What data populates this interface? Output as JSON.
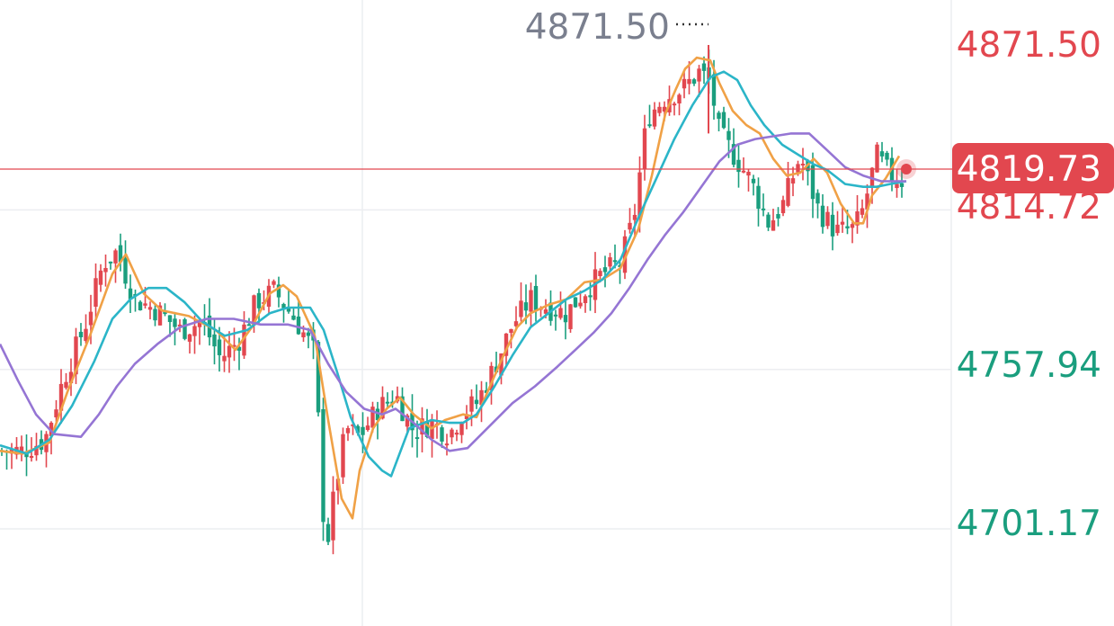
{
  "chart_data": {
    "type": "candlestick",
    "title": "",
    "y_axis": {
      "side": "right",
      "ticks": [
        {
          "label": "4871.50",
          "value": 4871.5,
          "color": "#e2474f"
        },
        {
          "label": "4814.72",
          "value": 4814.72,
          "color": "#e2474f"
        },
        {
          "label": "4757.94",
          "value": 4757.94,
          "color": "#1a9e7e"
        },
        {
          "label": "4701.17",
          "value": 4701.17,
          "color": "#1a9e7e"
        }
      ],
      "ylim": [
        4687,
        4880
      ]
    },
    "current_price": {
      "label": "4819.73",
      "value": 4819.73,
      "color": "#e2474f"
    },
    "peak_marker": {
      "label": "4871.50",
      "value": 4871.5,
      "color": "#7a7f8e"
    },
    "grid": true,
    "colors": {
      "up": "#e2474f",
      "down": "#1a9e7e",
      "grid": "#eceef1"
    },
    "ma_series": [
      {
        "color": "#f0a146",
        "points": [
          [
            0,
            4727
          ],
          [
            25,
            4726
          ],
          [
            55,
            4730
          ],
          [
            75,
            4748
          ],
          [
            100,
            4768
          ],
          [
            125,
            4790
          ],
          [
            140,
            4797
          ],
          [
            160,
            4783
          ],
          [
            180,
            4777
          ],
          [
            210,
            4775
          ],
          [
            240,
            4770
          ],
          [
            262,
            4763
          ],
          [
            280,
            4771
          ],
          [
            300,
            4783
          ],
          [
            315,
            4786
          ],
          [
            330,
            4782
          ],
          [
            350,
            4768
          ],
          [
            365,
            4738
          ],
          [
            380,
            4710
          ],
          [
            392,
            4703
          ],
          [
            400,
            4720
          ],
          [
            415,
            4735
          ],
          [
            430,
            4742
          ],
          [
            445,
            4746
          ],
          [
            460,
            4740
          ],
          [
            480,
            4735
          ],
          [
            495,
            4738
          ],
          [
            515,
            4740
          ],
          [
            530,
            4739
          ],
          [
            545,
            4750
          ],
          [
            560,
            4761
          ],
          [
            575,
            4771
          ],
          [
            590,
            4776
          ],
          [
            610,
            4779
          ],
          [
            630,
            4781
          ],
          [
            650,
            4787
          ],
          [
            670,
            4788
          ],
          [
            690,
            4792
          ],
          [
            710,
            4806
          ],
          [
            725,
            4825
          ],
          [
            740,
            4847
          ],
          [
            752,
            4856
          ],
          [
            762,
            4863
          ],
          [
            775,
            4867
          ],
          [
            790,
            4866
          ],
          [
            800,
            4858
          ],
          [
            815,
            4848
          ],
          [
            830,
            4843
          ],
          [
            845,
            4840
          ],
          [
            860,
            4831
          ],
          [
            875,
            4825
          ],
          [
            890,
            4826
          ],
          [
            905,
            4831
          ],
          [
            920,
            4826
          ],
          [
            935,
            4815
          ],
          [
            950,
            4808
          ],
          [
            960,
            4808
          ],
          [
            970,
            4818
          ],
          [
            985,
            4824
          ],
          [
            1000,
            4832
          ]
        ]
      },
      {
        "color": "#2bb5c8",
        "points": [
          [
            0,
            4729
          ],
          [
            30,
            4726
          ],
          [
            55,
            4731
          ],
          [
            80,
            4743
          ],
          [
            105,
            4759
          ],
          [
            125,
            4774
          ],
          [
            145,
            4781
          ],
          [
            165,
            4785
          ],
          [
            185,
            4785
          ],
          [
            205,
            4780
          ],
          [
            225,
            4773
          ],
          [
            250,
            4768
          ],
          [
            275,
            4770
          ],
          [
            300,
            4776
          ],
          [
            320,
            4778
          ],
          [
            345,
            4778
          ],
          [
            360,
            4770
          ],
          [
            375,
            4755
          ],
          [
            390,
            4739
          ],
          [
            410,
            4725
          ],
          [
            425,
            4720
          ],
          [
            435,
            4718
          ],
          [
            455,
            4735
          ],
          [
            480,
            4738
          ],
          [
            500,
            4737
          ],
          [
            515,
            4737
          ],
          [
            530,
            4740
          ],
          [
            550,
            4750
          ],
          [
            570,
            4761
          ],
          [
            590,
            4771
          ],
          [
            610,
            4776
          ],
          [
            630,
            4781
          ],
          [
            650,
            4784
          ],
          [
            670,
            4788
          ],
          [
            690,
            4795
          ],
          [
            710,
            4810
          ],
          [
            730,
            4824
          ],
          [
            750,
            4838
          ],
          [
            770,
            4850
          ],
          [
            790,
            4860
          ],
          [
            805,
            4862
          ],
          [
            820,
            4859
          ],
          [
            835,
            4850
          ],
          [
            850,
            4843
          ],
          [
            870,
            4836
          ],
          [
            890,
            4832
          ],
          [
            905,
            4829
          ],
          [
            920,
            4827
          ],
          [
            940,
            4822
          ],
          [
            960,
            4821
          ],
          [
            975,
            4821
          ],
          [
            990,
            4822
          ],
          [
            1008,
            4823
          ]
        ]
      },
      {
        "color": "#9575d4",
        "points": [
          [
            0,
            4765
          ],
          [
            20,
            4752
          ],
          [
            40,
            4740
          ],
          [
            60,
            4733
          ],
          [
            90,
            4732
          ],
          [
            110,
            4740
          ],
          [
            130,
            4750
          ],
          [
            150,
            4758
          ],
          [
            175,
            4765
          ],
          [
            200,
            4771
          ],
          [
            230,
            4774
          ],
          [
            260,
            4774
          ],
          [
            290,
            4772
          ],
          [
            320,
            4772
          ],
          [
            345,
            4770
          ],
          [
            365,
            4758
          ],
          [
            385,
            4748
          ],
          [
            405,
            4742
          ],
          [
            425,
            4740
          ],
          [
            440,
            4742
          ],
          [
            460,
            4737
          ],
          [
            480,
            4731
          ],
          [
            500,
            4727
          ],
          [
            520,
            4728
          ],
          [
            545,
            4736
          ],
          [
            570,
            4744
          ],
          [
            595,
            4750
          ],
          [
            620,
            4757
          ],
          [
            640,
            4763
          ],
          [
            660,
            4769
          ],
          [
            680,
            4776
          ],
          [
            700,
            4785
          ],
          [
            720,
            4795
          ],
          [
            740,
            4804
          ],
          [
            760,
            4812
          ],
          [
            780,
            4821
          ],
          [
            800,
            4830
          ],
          [
            820,
            4836
          ],
          [
            840,
            4838
          ],
          [
            860,
            4839
          ],
          [
            880,
            4840
          ],
          [
            900,
            4840
          ],
          [
            920,
            4834
          ],
          [
            940,
            4828
          ],
          [
            960,
            4825
          ],
          [
            980,
            4823
          ],
          [
            1000,
            4823
          ],
          [
            1008,
            4823
          ]
        ]
      }
    ]
  }
}
